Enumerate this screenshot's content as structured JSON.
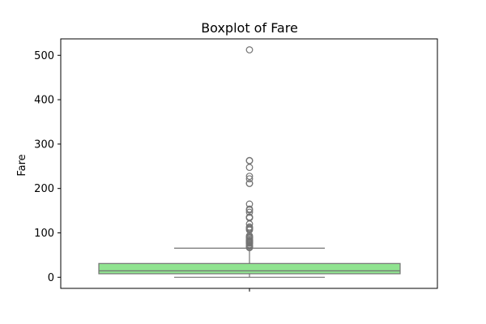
{
  "chart_data": {
    "type": "boxplot",
    "title": "Boxplot of Fare",
    "xlabel": "",
    "ylabel": "Fare",
    "ylim": [
      -25,
      537
    ],
    "yticks": [
      0,
      100,
      200,
      300,
      400,
      500
    ],
    "grid": false,
    "legend": "none",
    "colors": {
      "box_fill": "#90e390",
      "lines": "#737373",
      "frame": "#000000"
    },
    "box": {
      "q1": 7.9,
      "median": 14.5,
      "q3": 31.0,
      "whisker_low": 0,
      "whisker_high": 65.6
    },
    "outliers": [
      66.6,
      69.3,
      69.55,
      71.3,
      73.5,
      76.7,
      77.3,
      77.9,
      78.3,
      79.2,
      79.65,
      80,
      81.9,
      82.2,
      83.2,
      83.5,
      86.5,
      89.1,
      90,
      91.1,
      93.5,
      106.4,
      108.9,
      110.9,
      113.3,
      120,
      133.7,
      134.5,
      135.6,
      146.5,
      151.6,
      153.5,
      164.9,
      211.3,
      211.5,
      221.8,
      227.5,
      247.5,
      262.4,
      263,
      512.3
    ]
  }
}
